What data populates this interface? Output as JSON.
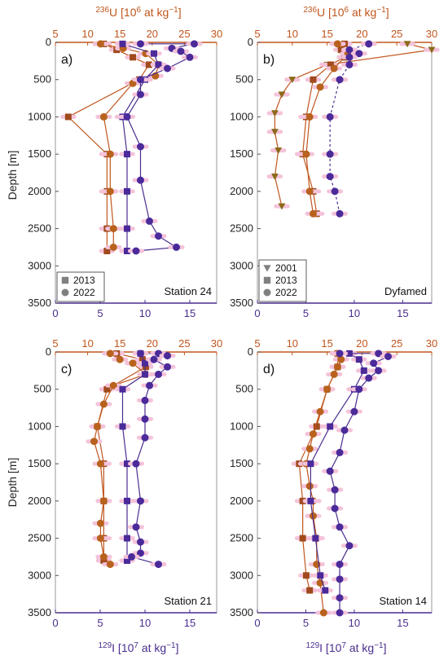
{
  "colors": {
    "u236": "#c0561d",
    "i129": "#4a2d8f",
    "i129_fill": "#4b2a9a",
    "marker_2013_u": "#a04a1d",
    "marker_2022_u": "#b8621e",
    "marker_2001_u": "#8c6a1a",
    "halo": "#f4c3da",
    "legend_marker": "#808080"
  },
  "axis_titles": {
    "top_sup": "236",
    "top_main": "U [10",
    "top_exp": "6",
    "top_rest": " at kg",
    "top_exp2": "−1",
    "top_close": "]",
    "bottom_sup": "129",
    "bottom_main": "I [10",
    "bottom_exp": "7",
    "bottom_rest": " at kg",
    "bottom_exp2": "−1",
    "bottom_close": "]",
    "ylabel": "Depth [m]"
  },
  "chart_data": [
    {
      "panel": "a)",
      "station": "Station 24",
      "type": "line",
      "top_axis": {
        "label": "236U [10^6 at kg-1]",
        "range": [
          5,
          30
        ],
        "ticks": [
          5,
          10,
          15,
          20,
          25,
          30
        ]
      },
      "bottom_axis": {
        "label": "129I [10^7 at kg-1]",
        "range": [
          0,
          18
        ],
        "ticks": [
          0,
          5,
          10,
          15
        ]
      },
      "y_axis": {
        "label": "Depth [m]",
        "range": [
          0,
          3500
        ],
        "reversed": true,
        "ticks": [
          0,
          500,
          1000,
          1500,
          2000,
          2500,
          3000,
          3500
        ]
      },
      "legend": {
        "position": "bottom-left",
        "entries": [
          {
            "marker": "square",
            "label": "2013"
          },
          {
            "marker": "circle",
            "label": "2022"
          }
        ]
      },
      "series": [
        {
          "name": "2013",
          "isotope": "U236",
          "marker": "square",
          "points": [
            [
              12.5,
              20
            ],
            [
              14.5,
              100
            ],
            [
              17.0,
              200
            ],
            [
              19.5,
              300
            ],
            [
              18.0,
              500
            ],
            [
              7.0,
              1000
            ],
            [
              13.0,
              1500
            ],
            [
              13.0,
              2000
            ],
            [
              13.0,
              2500
            ],
            [
              13.0,
              2800
            ]
          ]
        },
        {
          "name": "2022",
          "isotope": "U236",
          "marker": "circle",
          "points": [
            [
              12.0,
              20
            ],
            [
              15.5,
              80
            ],
            [
              19.0,
              150
            ],
            [
              21.0,
              300
            ],
            [
              20.5,
              450
            ],
            [
              17.0,
              550
            ],
            [
              12.5,
              1000
            ],
            [
              13.5,
              1500
            ],
            [
              13.5,
              2000
            ],
            [
              14.0,
              2500
            ],
            [
              14.0,
              2750
            ]
          ]
        },
        {
          "name": "2013",
          "isotope": "I129",
          "marker": "square",
          "points": [
            [
              7.5,
              20
            ],
            [
              11.0,
              150
            ],
            [
              11.5,
              300
            ],
            [
              10.0,
              500
            ],
            [
              7.5,
              1000
            ],
            [
              8.0,
              1500
            ],
            [
              8.0,
              2000
            ],
            [
              8.0,
              2500
            ],
            [
              8.0,
              2800
            ]
          ]
        },
        {
          "name": "2022",
          "isotope": "I129",
          "marker": "circle",
          "points": [
            [
              9.5,
              20
            ],
            [
              15.5,
              20
            ],
            [
              13.0,
              80
            ],
            [
              14.0,
              120
            ],
            [
              15.0,
              200
            ],
            [
              12.5,
              350
            ],
            [
              9.5,
              500
            ],
            [
              9.5,
              700
            ],
            [
              8.0,
              1000
            ],
            [
              9.5,
              1400
            ],
            [
              9.5,
              1850
            ],
            [
              10.5,
              2400
            ],
            [
              11.5,
              2600
            ],
            [
              13.5,
              2750
            ],
            [
              9.0,
              2800
            ]
          ]
        }
      ]
    },
    {
      "panel": "b)",
      "station": "Dyfamed",
      "type": "line",
      "top_axis": {
        "label": "236U [10^6 at kg-1]",
        "range": [
          5,
          30
        ],
        "ticks": [
          5,
          10,
          15,
          20,
          25,
          30
        ]
      },
      "bottom_axis": {
        "label": "129I [10^7 at kg-1]",
        "range": [
          0,
          18
        ],
        "ticks": [
          0,
          5,
          10,
          15
        ]
      },
      "y_axis": {
        "label": "Depth [m]",
        "range": [
          0,
          3500
        ],
        "reversed": true,
        "ticks": [
          0,
          500,
          1000,
          1500,
          2000,
          2500,
          3000,
          3500
        ]
      },
      "legend": {
        "position": "bottom-left",
        "entries": [
          {
            "marker": "triangle",
            "label": "2001"
          },
          {
            "marker": "square",
            "label": "2013"
          },
          {
            "marker": "circle",
            "label": "2022"
          }
        ]
      },
      "series": [
        {
          "name": "2001",
          "isotope": "U236",
          "marker": "triangle",
          "points": [
            [
              26.5,
              20
            ],
            [
              30.0,
              100
            ],
            [
              15.0,
              300
            ],
            [
              10.0,
              500
            ],
            [
              8.5,
              700
            ],
            [
              7.5,
              950
            ],
            [
              7.5,
              1200
            ],
            [
              8.0,
              1450
            ],
            [
              7.5,
              1800
            ],
            [
              8.5,
              2200
            ]
          ]
        },
        {
          "name": "2013",
          "isotope": "U236",
          "marker": "square",
          "points": [
            [
              17.5,
              20
            ],
            [
              17.0,
              100
            ],
            [
              17.5,
              200
            ],
            [
              15.5,
              300
            ],
            [
              13.0,
              500
            ],
            [
              12.0,
              1000
            ],
            [
              11.5,
              1500
            ],
            [
              13.0,
              2000
            ],
            [
              13.5,
              2300
            ]
          ]
        },
        {
          "name": "2022",
          "isotope": "U236",
          "marker": "circle",
          "points": [
            [
              16.5,
              20
            ],
            [
              18.0,
              150
            ],
            [
              16.0,
              350
            ],
            [
              14.0,
              600
            ],
            [
              12.5,
              1000
            ],
            [
              12.0,
              1500
            ],
            [
              12.5,
              2000
            ],
            [
              13.0,
              2300
            ]
          ]
        },
        {
          "name": "2022",
          "isotope": "I129",
          "marker": "circle",
          "points": [
            [
              11.5,
              20
            ],
            [
              9.5,
              100
            ],
            [
              10.5,
              150
            ],
            [
              9.5,
              200
            ],
            [
              9.5,
              300
            ],
            [
              8.5,
              500
            ],
            [
              7.5,
              1000
            ],
            [
              7.5,
              1500
            ],
            [
              7.5,
              1800
            ],
            [
              8.0,
              2000
            ],
            [
              8.5,
              2300
            ]
          ]
        }
      ]
    },
    {
      "panel": "c)",
      "station": "Station 21",
      "type": "line",
      "top_axis": {
        "label": "236U [10^6 at kg-1]",
        "range": [
          5,
          30
        ],
        "ticks": [
          5,
          10,
          15,
          20,
          25,
          30
        ]
      },
      "bottom_axis": {
        "label": "129I [10^7 at kg-1]",
        "range": [
          0,
          18
        ],
        "ticks": [
          0,
          5,
          10,
          15
        ]
      },
      "y_axis": {
        "label": "Depth [m]",
        "range": [
          0,
          3500
        ],
        "reversed": true,
        "ticks": [
          0,
          500,
          1000,
          1500,
          2000,
          2500,
          3000,
          3500
        ]
      },
      "series": [
        {
          "name": "2013",
          "isotope": "U236",
          "marker": "square",
          "points": [
            [
              14.5,
              20
            ],
            [
              18.5,
              100
            ],
            [
              19.0,
              200
            ],
            [
              13.0,
              500
            ],
            [
              11.5,
              1000
            ],
            [
              12.5,
              1500
            ],
            [
              12.5,
              2000
            ],
            [
              12.5,
              2500
            ],
            [
              12.5,
              2800
            ]
          ]
        },
        {
          "name": "2022",
          "isotope": "U236",
          "marker": "circle",
          "points": [
            [
              13.5,
              20
            ],
            [
              15.0,
              100
            ],
            [
              17.0,
              150
            ],
            [
              19.0,
              300
            ],
            [
              14.0,
              450
            ],
            [
              12.5,
              700
            ],
            [
              11.5,
              1000
            ],
            [
              11.0,
              1200
            ],
            [
              12.0,
              1500
            ],
            [
              12.5,
              2000
            ],
            [
              12.0,
              2300
            ],
            [
              12.0,
              2500
            ],
            [
              12.5,
              2750
            ],
            [
              13.5,
              2850
            ]
          ]
        },
        {
          "name": "2013",
          "isotope": "I129",
          "marker": "square",
          "points": [
            [
              9.5,
              20
            ],
            [
              10.0,
              150
            ],
            [
              10.0,
              300
            ],
            [
              7.5,
              500
            ],
            [
              7.5,
              1000
            ],
            [
              8.0,
              1500
            ],
            [
              8.0,
              2000
            ],
            [
              8.0,
              2500
            ],
            [
              8.0,
              2800
            ]
          ]
        },
        {
          "name": "2022",
          "isotope": "I129",
          "marker": "circle",
          "points": [
            [
              9.5,
              20
            ],
            [
              11.5,
              20
            ],
            [
              12.5,
              50
            ],
            [
              11.0,
              100
            ],
            [
              12.5,
              200
            ],
            [
              11.5,
              300
            ],
            [
              10.5,
              450
            ],
            [
              10.0,
              650
            ],
            [
              10.0,
              900
            ],
            [
              10.0,
              1150
            ],
            [
              9.0,
              1500
            ],
            [
              9.5,
              2000
            ],
            [
              9.0,
              2350
            ],
            [
              9.5,
              2550
            ],
            [
              9.5,
              2700
            ],
            [
              8.5,
              2750
            ],
            [
              11.5,
              2850
            ]
          ]
        }
      ]
    },
    {
      "panel": "d)",
      "station": "Station 14",
      "type": "line",
      "top_axis": {
        "label": "236U [10^6 at kg-1]",
        "range": [
          5,
          30
        ],
        "ticks": [
          5,
          10,
          15,
          20,
          25,
          30
        ]
      },
      "bottom_axis": {
        "label": "129I [10^7 at kg-1]",
        "range": [
          0,
          18
        ],
        "ticks": [
          0,
          5,
          10,
          15
        ]
      },
      "y_axis": {
        "label": "Depth [m]",
        "range": [
          0,
          3500
        ],
        "reversed": true,
        "ticks": [
          0,
          500,
          1000,
          1500,
          2000,
          2500,
          3000,
          3500
        ]
      },
      "series": [
        {
          "name": "2013",
          "isotope": "U236",
          "marker": "square",
          "points": [
            [
              16.5,
              20
            ],
            [
              16.5,
              200
            ],
            [
              15.0,
              500
            ],
            [
              13.5,
              1000
            ],
            [
              11.0,
              1500
            ],
            [
              11.5,
              2000
            ],
            [
              11.5,
              2500
            ],
            [
              12.0,
              3000
            ],
            [
              12.5,
              3200
            ]
          ]
        },
        {
          "name": "2022",
          "isotope": "U236",
          "marker": "circle",
          "points": [
            [
              16.5,
              20
            ],
            [
              17.0,
              100
            ],
            [
              16.5,
              200
            ],
            [
              16.0,
              300
            ],
            [
              15.0,
              500
            ],
            [
              14.0,
              800
            ],
            [
              13.0,
              1100
            ],
            [
              12.5,
              1300
            ],
            [
              12.0,
              1500
            ],
            [
              12.5,
              1800
            ],
            [
              13.0,
              2000
            ],
            [
              13.0,
              2200
            ],
            [
              13.5,
              2500
            ],
            [
              13.5,
              2850
            ],
            [
              14.0,
              3100
            ],
            [
              14.5,
              3500
            ]
          ]
        },
        {
          "name": "2013",
          "isotope": "I129",
          "marker": "square",
          "points": [
            [
              9.5,
              20
            ],
            [
              10.5,
              100
            ],
            [
              11.0,
              250
            ],
            [
              10.0,
              500
            ],
            [
              7.5,
              1000
            ],
            [
              5.5,
              1500
            ],
            [
              5.5,
              2000
            ],
            [
              6.0,
              2500
            ],
            [
              6.5,
              3000
            ],
            [
              7.0,
              3200
            ]
          ]
        },
        {
          "name": "2022",
          "isotope": "I129",
          "marker": "circle",
          "points": [
            [
              8.5,
              20
            ],
            [
              12.5,
              20
            ],
            [
              13.5,
              60
            ],
            [
              12.0,
              150
            ],
            [
              12.5,
              250
            ],
            [
              11.5,
              350
            ],
            [
              10.5,
              500
            ],
            [
              10.0,
              800
            ],
            [
              9.0,
              1050
            ],
            [
              8.5,
              1350
            ],
            [
              7.5,
              1600
            ],
            [
              8.0,
              1850
            ],
            [
              8.0,
              2100
            ],
            [
              8.5,
              2350
            ],
            [
              9.5,
              2600
            ],
            [
              8.5,
              2850
            ],
            [
              8.5,
              3050
            ],
            [
              8.5,
              3300
            ],
            [
              8.5,
              3500
            ]
          ]
        }
      ]
    }
  ]
}
